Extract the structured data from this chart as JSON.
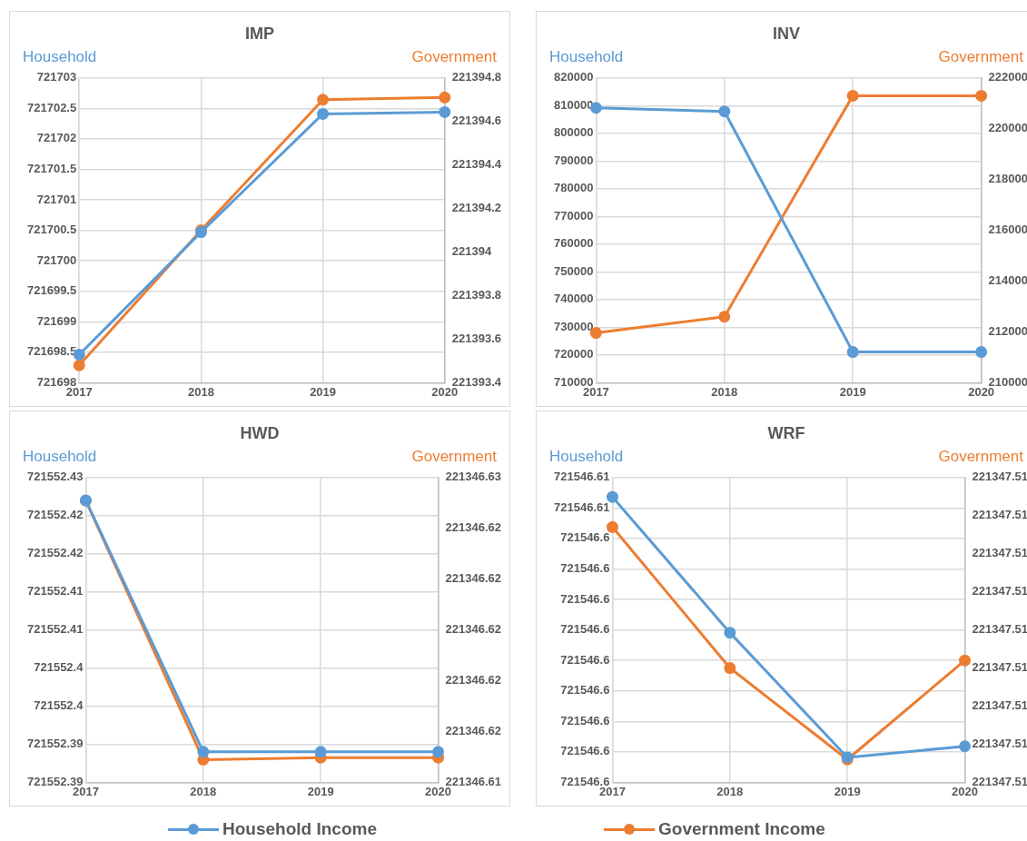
{
  "chart_data": [
    {
      "type": "line",
      "title": "IMP",
      "ylabel": "Household",
      "y2label": "Government",
      "categories": [
        "2017",
        "2018",
        "2019",
        "2020"
      ],
      "marker": "circle",
      "line_style": "solid",
      "grid": true,
      "legend": "bottom",
      "series": [
        {
          "name": "Household Income",
          "color": "#5b9bd5",
          "values": [
            721698.46,
            721700.47,
            721702.41,
            721702.44
          ]
        },
        {
          "name": "Government Income",
          "color": "#ed7d31",
          "axis": "y2",
          "values": [
            221393.48,
            221394.1,
            221394.7,
            221394.71
          ]
        }
      ],
      "ylim": [
        721698,
        721703
      ],
      "yticks": [
        721698,
        721698.5,
        721699,
        721699.5,
        721700,
        721700.5,
        721701,
        721701.5,
        721702,
        721702.5,
        721703
      ],
      "y2lim": [
        221393.4,
        221394.8
      ],
      "y2ticks": [
        221393.4,
        221393.6,
        221393.8,
        221394,
        221394.2,
        221394.4,
        221394.6,
        221394.8
      ]
    },
    {
      "type": "line",
      "title": "INV",
      "ylabel": "Household",
      "y2label": "Government",
      "categories": [
        "2017",
        "2018",
        "2019",
        "2020"
      ],
      "marker": "circle",
      "line_style": "solid",
      "grid": true,
      "series": [
        {
          "color": "#5b9bd5",
          "values": [
            809200,
            807900,
            721100,
            721100
          ]
        },
        {
          "color": "#ed7d31",
          "axis": "y2",
          "values": [
            211960,
            212600,
            221300,
            221300
          ]
        }
      ],
      "ylim": [
        710000,
        820000
      ],
      "yticks": [
        710000,
        720000,
        730000,
        740000,
        750000,
        760000,
        770000,
        780000,
        790000,
        800000,
        810000,
        820000
      ],
      "y2lim": [
        210000,
        222000
      ],
      "y2ticks": [
        210000,
        212000,
        214000,
        216000,
        218000,
        220000,
        222000
      ]
    },
    {
      "type": "line",
      "title": "HWD",
      "ylabel": "Household",
      "y2label": "Government",
      "categories": [
        "2017",
        "2018",
        "2019",
        "2020"
      ],
      "marker": "circle",
      "line_style": "solid",
      "grid": true,
      "series": [
        {
          "color": "#5b9bd5",
          "values": [
            721552.427,
            721552.394,
            721552.394,
            721552.394
          ]
        },
        {
          "color": "#ed7d31",
          "axis": "y2",
          "values": [
            221346.6252,
            221346.61398,
            221346.61407,
            221346.61407
          ]
        }
      ],
      "ylim": [
        721552.39,
        721552.43
      ],
      "yticks": [
        {
          "value": 721552.39,
          "label": "721552.39"
        },
        {
          "value": 721552.395,
          "label": "721552.39"
        },
        {
          "value": 721552.4,
          "label": "721552.4"
        },
        {
          "value": 721552.405,
          "label": "721552.4"
        },
        {
          "value": 721552.41,
          "label": "721552.41"
        },
        {
          "value": 721552.415,
          "label": "721552.41"
        },
        {
          "value": 721552.42,
          "label": "721552.42"
        },
        {
          "value": 721552.425,
          "label": "721552.42"
        },
        {
          "value": 721552.43,
          "label": "721552.43"
        }
      ],
      "y2lim": [
        221346.613,
        221346.6262
      ],
      "y2ticks": [
        {
          "value": 221346.613,
          "label": "221346.61"
        },
        {
          "value": 221346.6152,
          "label": "221346.62"
        },
        {
          "value": 221346.6174,
          "label": "221346.62"
        },
        {
          "value": 221346.6196,
          "label": "221346.62"
        },
        {
          "value": 221346.6218,
          "label": "221346.62"
        },
        {
          "value": 221346.624,
          "label": "221346.62"
        },
        {
          "value": 221346.6262,
          "label": "221346.63"
        }
      ]
    },
    {
      "type": "line",
      "title": "WRF",
      "ylabel": "Household",
      "y2label": "Government",
      "categories": [
        "2017",
        "2018",
        "2019",
        "2020"
      ],
      "marker": "circle",
      "line_style": "solid",
      "grid": true,
      "series": [
        {
          "color": "#5b9bd5",
          "values": [
            721546.6058,
            721546.6009,
            721546.5964,
            721546.5968
          ]
        },
        {
          "color": "#ed7d31",
          "axis": "y2",
          "values": [
            221347.5122,
            221347.5085,
            221347.5061,
            221347.5087
          ]
        }
      ],
      "ylim": [
        721546.5955,
        721546.6065
      ],
      "yticks": [
        {
          "value": 721546.5955,
          "label": "721546.6"
        },
        {
          "value": 721546.5966,
          "label": "721546.6"
        },
        {
          "value": 721546.5977,
          "label": "721546.6"
        },
        {
          "value": 721546.5988,
          "label": "721546.6"
        },
        {
          "value": 721546.5999,
          "label": "721546.6"
        },
        {
          "value": 721546.601,
          "label": "721546.6"
        },
        {
          "value": 721546.6021,
          "label": "721546.6"
        },
        {
          "value": 721546.6032,
          "label": "721546.6"
        },
        {
          "value": 721546.6043,
          "label": "721546.6"
        },
        {
          "value": 721546.6054,
          "label": "721546.61"
        },
        {
          "value": 721546.6065,
          "label": "721546.61"
        }
      ],
      "y2lim": [
        221347.5055,
        221347.5135
      ],
      "y2ticks": [
        {
          "value": 221347.5055,
          "label": "221347.51"
        },
        {
          "value": 221347.5065,
          "label": "221347.51"
        },
        {
          "value": 221347.5075,
          "label": "221347.51"
        },
        {
          "value": 221347.5085,
          "label": "221347.51"
        },
        {
          "value": 221347.5095,
          "label": "221347.51"
        },
        {
          "value": 221347.5105,
          "label": "221347.51"
        },
        {
          "value": 221347.5115,
          "label": "221347.51"
        },
        {
          "value": 221347.5125,
          "label": "221347.51"
        },
        {
          "value": 221347.5135,
          "label": "221347.51"
        }
      ]
    }
  ]
}
